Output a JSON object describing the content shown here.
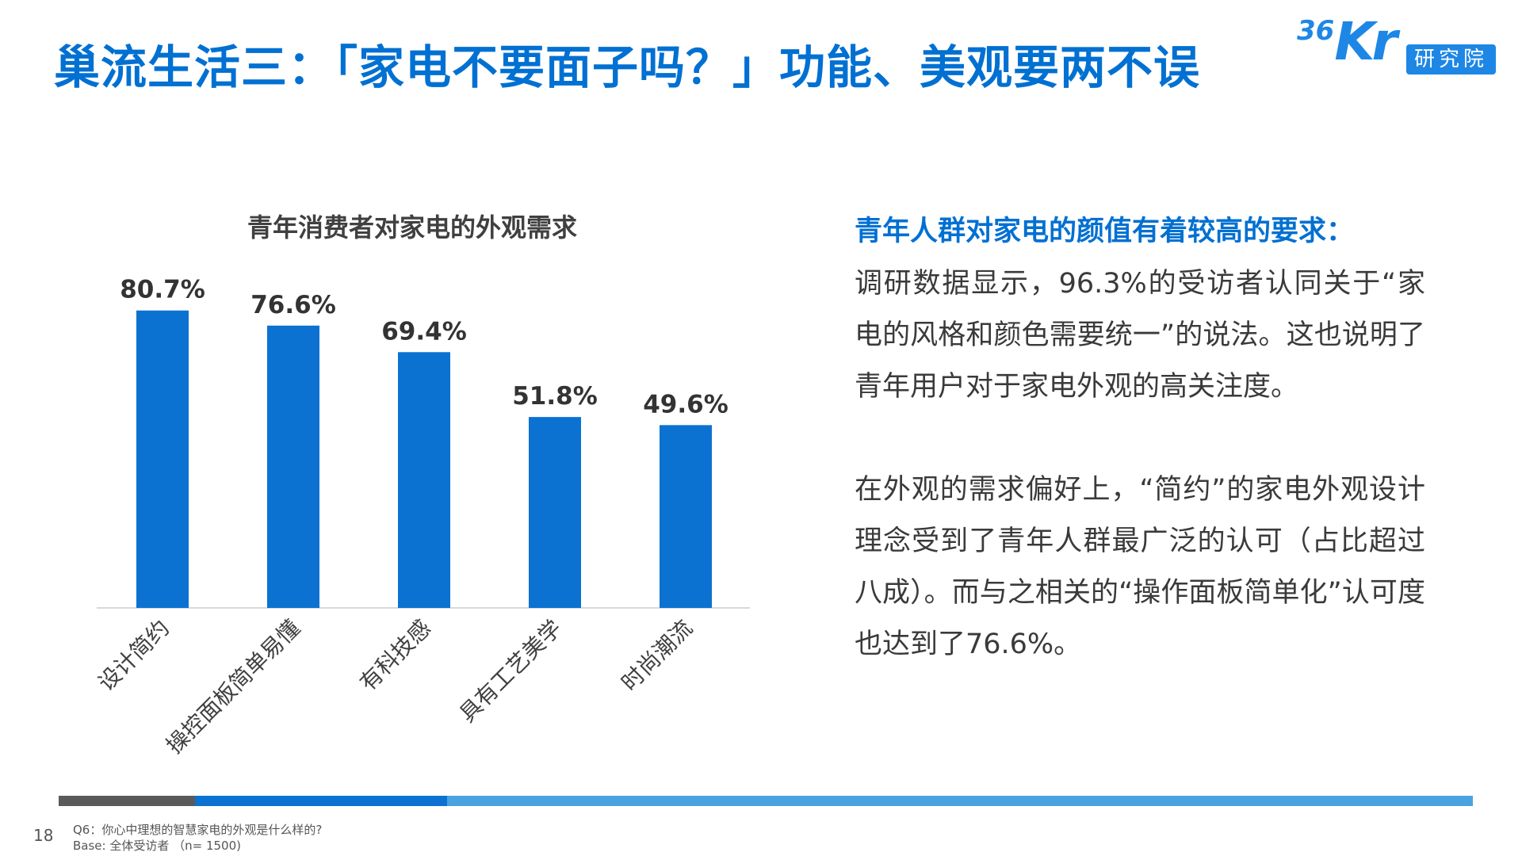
{
  "page": {
    "title": "巢流生活三：「家电不要面子吗？」功能、美观要两不误",
    "page_number": "18",
    "logo": {
      "mark_small": "36",
      "mark_big": "Kr",
      "badge": "研究院"
    }
  },
  "chart_data": {
    "type": "bar",
    "title": "青年消费者对家电的外观需求",
    "categories": [
      "设计简约",
      "操控面板简单易懂",
      "有科技感",
      "具有工艺美学",
      "时尚潮流"
    ],
    "values": [
      80.7,
      76.6,
      69.4,
      51.8,
      49.6
    ],
    "value_labels": [
      "80.7%",
      "76.6%",
      "69.4%",
      "51.8%",
      "49.6%"
    ],
    "ylim": [
      0,
      100
    ],
    "color": "#0b72d1",
    "grid": false,
    "legend": "none"
  },
  "description": {
    "heading": "青年人群对家电的颜值有着较高的要求：",
    "paragraph1": "调研数据显示，96.3%的受访者认同关于“家电的风格和颜色需要统一”的说法。这也说明了青年用户对于家电外观的高关注度。",
    "paragraph2": "在外观的需求偏好上，“简约”的家电外观设计理念受到了青年人群最广泛的认可（占比超过八成）。而与之相关的“操作面板简单化”认可度也达到了76.6%。"
  },
  "footer": {
    "question": "Q6：你心中理想的智慧家电的外观是什么样的?",
    "base": "Base: 全体受访者 （n= 1500)",
    "bar_colors": [
      "#5a5a5a",
      "#0b72d1",
      "#4aa3e0"
    ]
  }
}
